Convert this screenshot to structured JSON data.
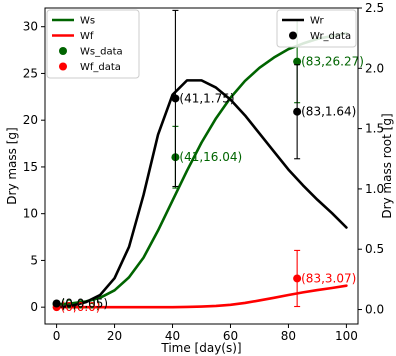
{
  "chart_data": {
    "type": "line",
    "xlabel": "Time [day(s)]",
    "ylabel_left": "Dry mass [g]",
    "ylabel_right": "Dry mass root [g]",
    "xlim": [
      -4,
      104
    ],
    "ylim_left": [
      -1.8,
      32
    ],
    "ylim_right": [
      -0.12,
      2.5
    ],
    "xticks": [
      0,
      20,
      40,
      60,
      80,
      100
    ],
    "yticks_left": [
      0,
      5,
      10,
      15,
      20,
      25,
      30
    ],
    "yticks_right": [
      0.0,
      0.5,
      1.0,
      1.5,
      2.0,
      2.5
    ],
    "colors": {
      "Ws": "#006400",
      "Wf": "#ff0000",
      "Wr": "#000000"
    },
    "series": [
      {
        "name": "Ws",
        "axis": "left",
        "x": [
          0,
          5,
          10,
          15,
          20,
          25,
          30,
          35,
          40,
          45,
          50,
          55,
          60,
          65,
          70,
          75,
          80,
          85,
          90,
          95,
          100
        ],
        "values": [
          0.3,
          0.4,
          0.6,
          1.0,
          1.8,
          3.2,
          5.3,
          8.2,
          11.4,
          14.6,
          17.6,
          20.2,
          22.4,
          24.2,
          25.6,
          26.7,
          27.6,
          28.2,
          28.7,
          29.0,
          29.3
        ]
      },
      {
        "name": "Wf",
        "axis": "left",
        "x": [
          0,
          5,
          10,
          15,
          20,
          25,
          30,
          35,
          40,
          45,
          50,
          55,
          60,
          65,
          70,
          75,
          80,
          85,
          90,
          95,
          100
        ],
        "values": [
          0,
          0,
          0,
          0,
          0,
          0,
          0,
          0,
          0,
          0.02,
          0.06,
          0.13,
          0.25,
          0.45,
          0.72,
          1.0,
          1.3,
          1.58,
          1.83,
          2.05,
          2.3
        ]
      },
      {
        "name": "Wr",
        "axis": "right",
        "x": [
          0,
          5,
          10,
          15,
          20,
          25,
          30,
          35,
          40,
          45,
          50,
          55,
          60,
          65,
          70,
          75,
          80,
          85,
          90,
          95,
          100
        ],
        "values": [
          0.02,
          0.03,
          0.06,
          0.12,
          0.26,
          0.52,
          0.95,
          1.45,
          1.78,
          1.9,
          1.9,
          1.84,
          1.74,
          1.61,
          1.46,
          1.31,
          1.16,
          1.03,
          0.91,
          0.8,
          0.68
        ]
      }
    ],
    "data_points": [
      {
        "name": "Ws_data",
        "axis": "left",
        "color": "#006400",
        "points": [
          {
            "x": 0,
            "y": 0.3,
            "err": 0,
            "label": "(0,0.3)"
          },
          {
            "x": 41,
            "y": 16.04,
            "err": 3.3,
            "label": "(41,16.04)"
          },
          {
            "x": 83,
            "y": 26.27,
            "err": 4.4,
            "label": "(83,26.27)"
          }
        ]
      },
      {
        "name": "Wf_data",
        "axis": "left",
        "color": "#ff0000",
        "points": [
          {
            "x": 0,
            "y": 0.0,
            "err": 0,
            "label": "(0,0.0)"
          },
          {
            "x": 83,
            "y": 3.07,
            "err": 3.0,
            "label": "(83,3.07)"
          }
        ]
      },
      {
        "name": "Wr_data",
        "axis": "right",
        "color": "#000000",
        "points": [
          {
            "x": 0,
            "y": 0.05,
            "err": 0,
            "label": "(0,0.05)"
          },
          {
            "x": 41,
            "y": 1.75,
            "err": 0.73,
            "label": "(41,1.75)"
          },
          {
            "x": 83,
            "y": 1.64,
            "err": 0.39,
            "label": "(83,1.64)"
          }
        ]
      }
    ],
    "legend_left": {
      "placement": "top-left",
      "entries": [
        {
          "label": "Ws",
          "kind": "line",
          "color": "#006400"
        },
        {
          "label": "Wf",
          "kind": "line",
          "color": "#ff0000"
        },
        {
          "label": "Ws_data",
          "kind": "dot",
          "color": "#006400"
        },
        {
          "label": "Wf_data",
          "kind": "dot",
          "color": "#ff0000"
        }
      ]
    },
    "legend_right": {
      "placement": "top-right",
      "entries": [
        {
          "label": "Wr",
          "kind": "line",
          "color": "#000000"
        },
        {
          "label": "Wr_data",
          "kind": "dot",
          "color": "#000000"
        }
      ]
    },
    "grid": false
  }
}
